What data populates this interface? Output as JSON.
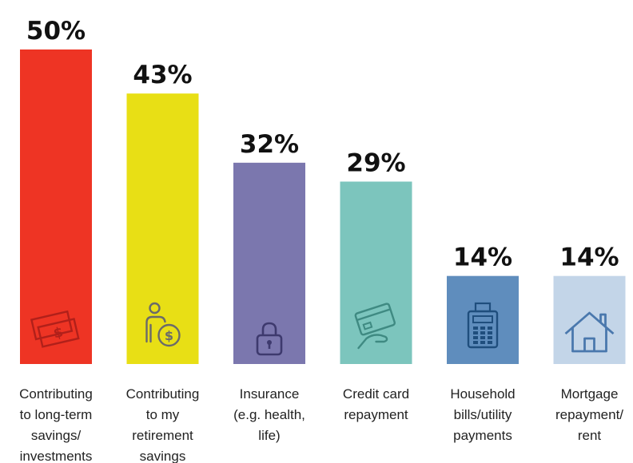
{
  "chart_data": {
    "type": "bar",
    "title": "",
    "xlabel": "",
    "ylabel": "",
    "ylim": [
      0,
      50
    ],
    "grid": false,
    "legend": "none",
    "categories": [
      [
        "Contributing",
        "to long-term",
        "savings/",
        "investments"
      ],
      [
        "Contributing",
        "to my",
        "retirement",
        "savings"
      ],
      [
        "Insurance",
        "(e.g. health,",
        "life)"
      ],
      [
        "Credit card",
        "repayment"
      ],
      [
        "Household",
        "bills/utility",
        "payments"
      ],
      [
        "Mortgage",
        "repayment/",
        "rent"
      ]
    ],
    "values": [
      50,
      43,
      32,
      29,
      14,
      14
    ],
    "value_labels": [
      "50%",
      "43%",
      "32%",
      "29%",
      "14%",
      "14%"
    ],
    "colors": [
      "#ee3424",
      "#e8df15",
      "#7b77ae",
      "#7cc5bd",
      "#5f8dbd",
      "#c3d5e8"
    ],
    "icons": [
      "money-icon",
      "person-coin-icon",
      "lock-icon",
      "card-icon",
      "calculator-icon",
      "house-icon"
    ]
  }
}
